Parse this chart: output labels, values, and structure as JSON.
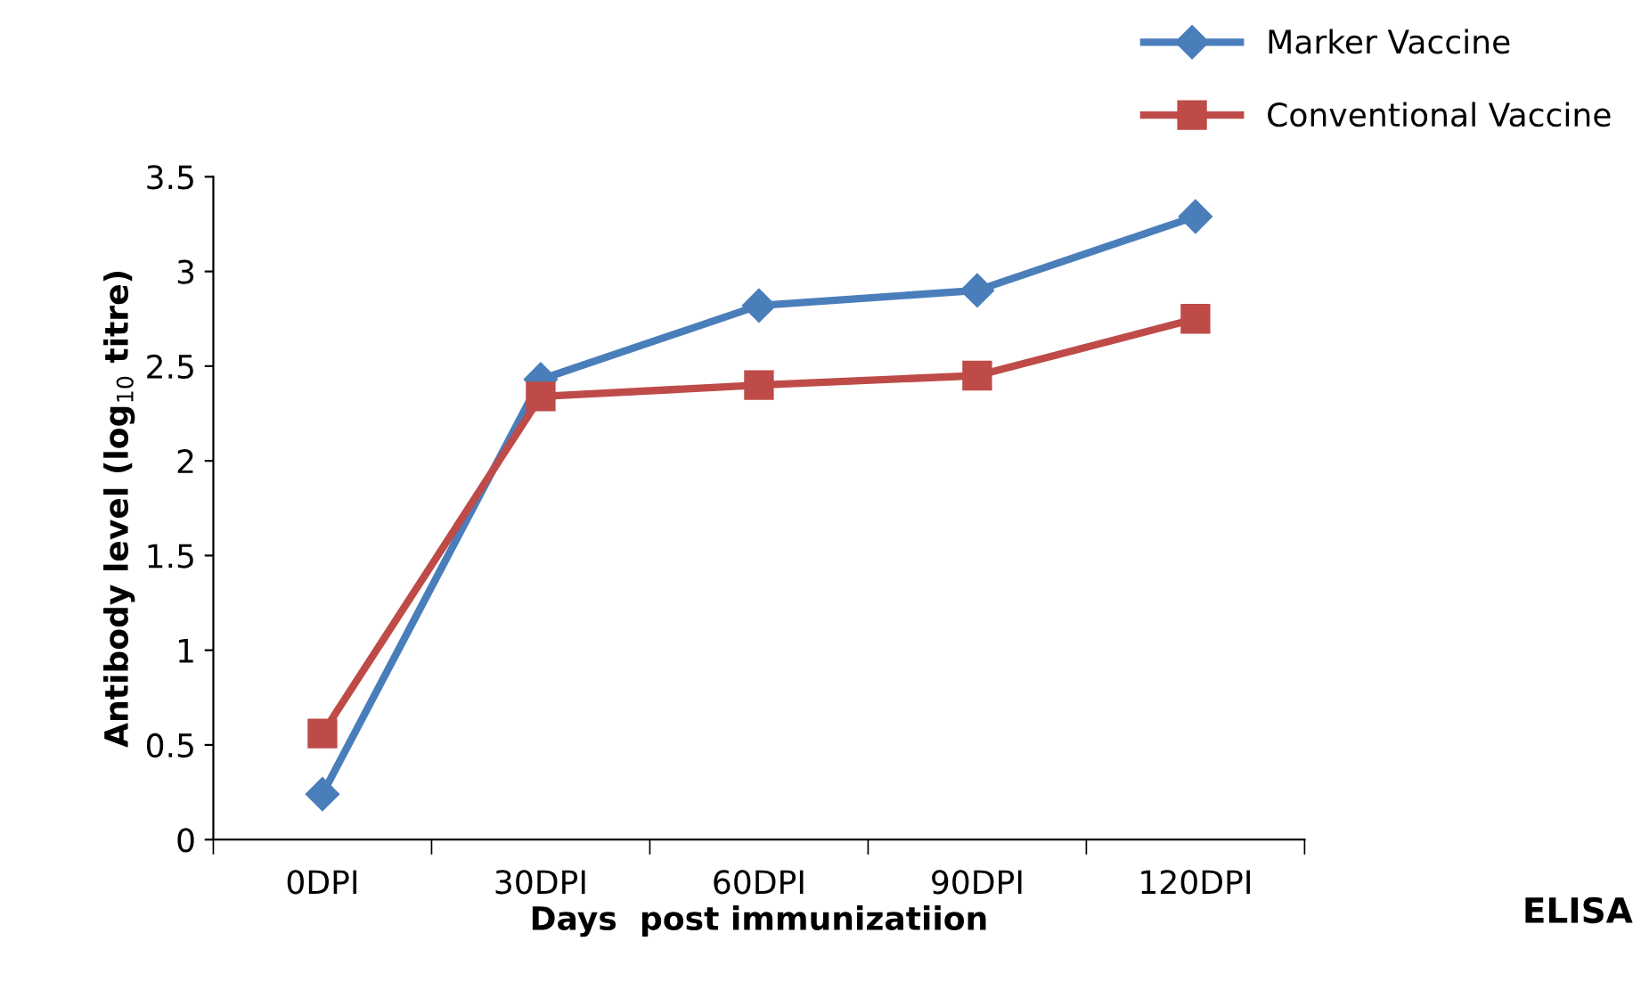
{
  "chart_data": {
    "type": "line",
    "xlabel": "Days  post immunizatiion",
    "ylabel": "Antibody level (log$_{10}$ titre)",
    "categories": [
      "0DPI",
      "30DPI",
      "60DPI",
      "90DPI",
      "120DPI"
    ],
    "series": [
      {
        "name": "Marker Vaccine",
        "color": "#4a7ebb",
        "marker": "diamond",
        "values": [
          0.24,
          2.43,
          2.82,
          2.9,
          3.29
        ]
      },
      {
        "name": "Conventional Vaccine",
        "color": "#be4b48",
        "marker": "square",
        "values": [
          0.56,
          2.34,
          2.4,
          2.45,
          2.75
        ]
      }
    ],
    "ylim": [
      0,
      3.5
    ],
    "yticks": [
      0,
      0.5,
      1,
      1.5,
      2,
      2.5,
      3,
      3.5
    ],
    "grid": false,
    "legend": "top right",
    "annotations": [
      "ELISA"
    ]
  }
}
